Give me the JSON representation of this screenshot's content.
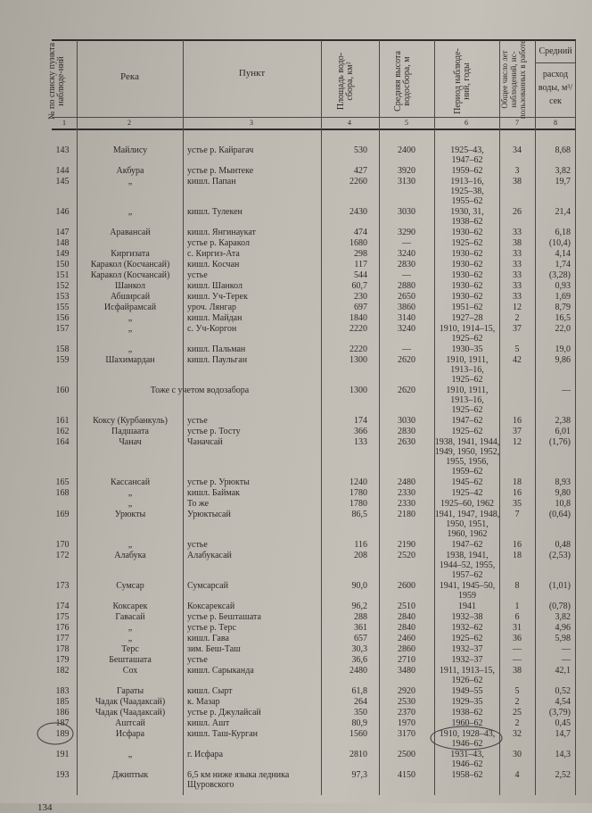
{
  "header": {
    "col1": "№ по списку пункта наблюде-ний",
    "col2": "Река",
    "col3": "Пункт",
    "col4": "Площадь водо-сбора, км²",
    "col5": "Средняя высота водосбора, м",
    "col6": "Период наблюде-ний, годы",
    "col7": "Общее число лет наблюдений, ис-пользованных в работе",
    "col8_group": "Средний",
    "col8": "расход воды, м³/сек",
    "col_numbers": [
      "1",
      "2",
      "3",
      "4",
      "5",
      "6",
      "7",
      "8"
    ]
  },
  "rows": [
    {
      "num": "143",
      "river": "Майлису",
      "point": "устье р. Кайрагач",
      "area": "530",
      "height": "2400",
      "period": [
        "1925–43,",
        "1947–62"
      ],
      "years": "34",
      "flow": "8,68"
    },
    {
      "num": "144",
      "river": "Акбура",
      "point": "устье р. Мынтеке",
      "area": "427",
      "height": "3920",
      "period": [
        "1959–62"
      ],
      "years": "3",
      "flow": "3,82"
    },
    {
      "num": "145",
      "river": "„",
      "point": "кишл. Папан",
      "area": "2260",
      "height": "3130",
      "period": [
        "1913–16,",
        "1925–38,",
        "1955–62"
      ],
      "years": "38",
      "flow": "19,7"
    },
    {
      "num": "146",
      "river": "„",
      "point": "кишл. Тулекен",
      "area": "2430",
      "height": "3030",
      "period": [
        "1930, 31,",
        "1938–62"
      ],
      "years": "26",
      "flow": "21,4"
    },
    {
      "num": "147",
      "river": "Аравансай",
      "point": "кишл. Янгинаукат",
      "area": "474",
      "height": "3290",
      "period": [
        "1930–62"
      ],
      "years": "33",
      "flow": "6,18"
    },
    {
      "num": "148",
      "river": "",
      "point": "устье р. Каракол",
      "area": "1680",
      "height": "—",
      "period": [
        "1925–62"
      ],
      "years": "38",
      "flow": "(10,4)"
    },
    {
      "num": "149",
      "river": "Киргизата",
      "point": "с. Киргиз-Ата",
      "area": "298",
      "height": "3240",
      "period": [
        "1930–62"
      ],
      "years": "33",
      "flow": "4,14"
    },
    {
      "num": "150",
      "river": "Каракол (Косчансай)",
      "point": "кишл. Косчан",
      "area": "117",
      "height": "2830",
      "period": [
        "1930–62"
      ],
      "years": "33",
      "flow": "1,74"
    },
    {
      "num": "151",
      "river": "Каракол (Косчансай)",
      "point": "устье",
      "area": "544",
      "height": "—",
      "period": [
        "1930–62"
      ],
      "years": "33",
      "flow": "(3,28)"
    },
    {
      "num": "152",
      "river": "Шанкол",
      "point": "кишл. Шанкол",
      "area": "60,7",
      "height": "2880",
      "period": [
        "1930–62"
      ],
      "years": "33",
      "flow": "0,93"
    },
    {
      "num": "153",
      "river": "Абширсай",
      "point": "кишл. Уч-Терек",
      "area": "230",
      "height": "2650",
      "period": [
        "1930–62"
      ],
      "years": "33",
      "flow": "1,69"
    },
    {
      "num": "155",
      "river": "Исфайрамсай",
      "point": "уроч. Лянгар",
      "area": "697",
      "height": "3860",
      "period": [
        "1951–62"
      ],
      "years": "12",
      "flow": "8,79"
    },
    {
      "num": "156",
      "river": "„",
      "point": "кишл. Майдан",
      "area": "1840",
      "height": "3140",
      "period": [
        "1927–28"
      ],
      "years": "2",
      "flow": "16,5"
    },
    {
      "num": "157",
      "river": "„",
      "point": "с. Уч-Коргон",
      "area": "2220",
      "height": "3240",
      "period": [
        "1910, 1914–15,",
        "1925–62"
      ],
      "years": "37",
      "flow": "22,0"
    },
    {
      "num": "158",
      "river": "„",
      "point": "кишл. Пальман",
      "area": "2220",
      "height": "—",
      "period": [
        "1930–35"
      ],
      "years": "5",
      "flow": "19,0"
    },
    {
      "num": "159",
      "river": "Шахимардан",
      "point": "кишл. Паульган",
      "area": "1300",
      "height": "2620",
      "period": [
        "1910, 1911,",
        "1913–16,",
        "1925–62"
      ],
      "years": "42",
      "flow": "9,86"
    },
    {
      "num": "160",
      "span": "Тоже с учетом водозабора",
      "area": "1300",
      "height": "2620",
      "period": [
        "1910, 1911,",
        "1913–16,",
        "1925–62"
      ],
      "years": "",
      "flow": "—"
    },
    {
      "num": "161",
      "river": "Коксу (Курбанкуль)",
      "point": "устье",
      "area": "174",
      "height": "3030",
      "period": [
        "1947–62"
      ],
      "years": "16",
      "flow": "2,38"
    },
    {
      "num": "162",
      "river": "Падшаата",
      "point": "устье р. Тосту",
      "area": "366",
      "height": "2830",
      "period": [
        "1925–62"
      ],
      "years": "37",
      "flow": "6,01"
    },
    {
      "num": "164",
      "river": "Чанач",
      "point": "Чаначсай",
      "area": "133",
      "height": "2630",
      "period": [
        "1938, 1941, 1944,",
        "1949, 1950, 1952,",
        "1955, 1956,",
        "1959–62"
      ],
      "years": "12",
      "flow": "(1,76)"
    },
    {
      "num": "165",
      "river": "Кассансай",
      "point": "устье р. Урюкты",
      "area": "1240",
      "height": "2480",
      "period": [
        "1945–62"
      ],
      "years": "18",
      "flow": "8,93"
    },
    {
      "num": "168",
      "river": "„",
      "point": "кишл. Баймак",
      "area": "1780",
      "height": "2330",
      "period": [
        "1925–42"
      ],
      "years": "16",
      "flow": "9,80"
    },
    {
      "num": "",
      "river": "„",
      "point": "То же",
      "area": "1780",
      "height": "2330",
      "period": [
        "1925–60, 1962"
      ],
      "years": "35",
      "flow": "10,8"
    },
    {
      "num": "169",
      "river": "Урюкты",
      "point": "Урюктысай",
      "area": "86,5",
      "height": "2180",
      "period": [
        "1941, 1947, 1948,",
        "1950, 1951,",
        "1960, 1962"
      ],
      "years": "7",
      "flow": "(0,64)"
    },
    {
      "num": "170",
      "river": "„",
      "point": "устье",
      "area": "116",
      "height": "2190",
      "period": [
        "1947–62"
      ],
      "years": "16",
      "flow": "0,48"
    },
    {
      "num": "172",
      "river": "Алабука",
      "point": "Алабукасай",
      "area": "208",
      "height": "2520",
      "period": [
        "1938, 1941,",
        "1944–52, 1955,",
        "1957–62"
      ],
      "years": "18",
      "flow": "(2,53)"
    },
    {
      "num": "173",
      "river": "Сумсар",
      "point": "Сумсарсай",
      "area": "90,0",
      "height": "2600",
      "period": [
        "1941, 1945–50,",
        "1959"
      ],
      "years": "8",
      "flow": "(1,01)"
    },
    {
      "num": "174",
      "river": "Коксарек",
      "point": "Коксарексай",
      "area": "96,2",
      "height": "2510",
      "period": [
        "1941"
      ],
      "years": "1",
      "flow": "(0,78)"
    },
    {
      "num": "175",
      "river": "Гавасай",
      "point": "устье р. Бешташата",
      "area": "288",
      "height": "2840",
      "period": [
        "1932–38"
      ],
      "years": "6",
      "flow": "3,82"
    },
    {
      "num": "176",
      "river": "„",
      "point": "устье р. Терс",
      "area": "361",
      "height": "2840",
      "period": [
        "1932–62"
      ],
      "years": "31",
      "flow": "4,96"
    },
    {
      "num": "177",
      "river": "„",
      "point": "кишл. Гава",
      "area": "657",
      "height": "2460",
      "period": [
        "1925–62"
      ],
      "years": "36",
      "flow": "5,98"
    },
    {
      "num": "178",
      "river": "Терс",
      "point": "зим. Беш-Таш",
      "area": "30,3",
      "height": "2860",
      "period": [
        "1932–37"
      ],
      "years": "—",
      "flow": "—"
    },
    {
      "num": "179",
      "river": "Бешташата",
      "point": "устье",
      "area": "36,6",
      "height": "2710",
      "period": [
        "1932–37"
      ],
      "years": "—",
      "flow": "—"
    },
    {
      "num": "182",
      "river": "Сох",
      "point": "кишл. Сарыканда",
      "area": "2480",
      "height": "3480",
      "period": [
        "1911, 1913–15,",
        "1926–62"
      ],
      "years": "38",
      "flow": "42,1"
    },
    {
      "num": "183",
      "river": "Гараты",
      "point": "кишл. Сырт",
      "area": "61,8",
      "height": "2920",
      "period": [
        "1949–55"
      ],
      "years": "5",
      "flow": "0,52"
    },
    {
      "num": "185",
      "river": "Чадак (Чаадаксай)",
      "point": "к. Мазар",
      "area": "264",
      "height": "2530",
      "period": [
        "1929–35"
      ],
      "years": "2",
      "flow": "4,54"
    },
    {
      "num": "186",
      "river": "Чадак (Чаадаксай)",
      "point": "устье р. Джулайсай",
      "area": "350",
      "height": "2370",
      "period": [
        "1938–62"
      ],
      "years": "25",
      "flow": "(3,79)"
    },
    {
      "num": "187",
      "river": "Аштсай",
      "point": "кишл. Ашт",
      "area": "80,9",
      "height": "1970",
      "period": [
        "1960–62"
      ],
      "years": "2",
      "flow": "0,45"
    },
    {
      "num": "189",
      "river": "Исфара",
      "point": "кишл. Таш-Курган",
      "area": "1560",
      "height": "3170",
      "period": [
        "1910, 1928–43,",
        "1946–62"
      ],
      "years": "32",
      "flow": "14,7"
    },
    {
      "num": "191",
      "river": "„",
      "point": "г. Исфара",
      "area": "2810",
      "height": "2500",
      "period": [
        "1931–43,",
        "1946–62"
      ],
      "years": "30",
      "flow": "14,3"
    },
    {
      "num": "193",
      "river": "Джиптык",
      "point": "6,5 км ниже языка ледника\nЩуровского",
      "area": "97,3",
      "height": "4150",
      "period": [
        "1958–62"
      ],
      "years": "4",
      "flow": "2,52"
    }
  ],
  "page_number": "134",
  "colors": {
    "paper": "#bdb9b1",
    "ink": "#2b2a28"
  }
}
